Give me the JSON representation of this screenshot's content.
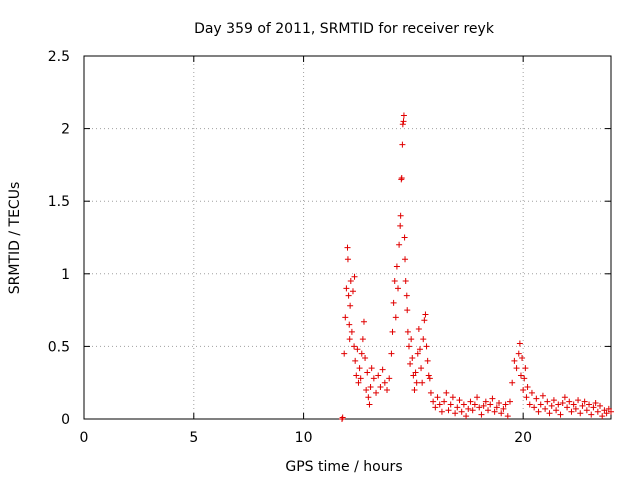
{
  "chart_data": {
    "type": "scatter",
    "title": "Day 359 of 2011, SRMTID for receiver reyk",
    "xlabel": "GPS time / hours",
    "ylabel": "SRMTID / TECUs",
    "xlim": [
      0,
      24
    ],
    "ylim": [
      0,
      2.5
    ],
    "xticks": [
      0,
      5,
      10,
      20
    ],
    "yticks": [
      0,
      0.5,
      1,
      1.5,
      2,
      2.5
    ],
    "grid": true,
    "marker": "plus",
    "color": "#e00000",
    "series": [
      {
        "name": "SRMTID",
        "points": [
          [
            11.75,
            0.0
          ],
          [
            11.78,
            0.01
          ],
          [
            11.85,
            0.45
          ],
          [
            11.9,
            0.7
          ],
          [
            11.95,
            0.9
          ],
          [
            12.0,
            1.18
          ],
          [
            12.02,
            1.1
          ],
          [
            12.05,
            0.85
          ],
          [
            12.08,
            0.65
          ],
          [
            12.1,
            0.55
          ],
          [
            12.12,
            0.78
          ],
          [
            12.15,
            0.95
          ],
          [
            12.2,
            0.6
          ],
          [
            12.25,
            0.88
          ],
          [
            12.3,
            0.5
          ],
          [
            12.32,
            0.98
          ],
          [
            12.35,
            0.4
          ],
          [
            12.4,
            0.3
          ],
          [
            12.45,
            0.48
          ],
          [
            12.5,
            0.25
          ],
          [
            12.55,
            0.35
          ],
          [
            12.6,
            0.28
          ],
          [
            12.65,
            0.45
          ],
          [
            12.7,
            0.55
          ],
          [
            12.75,
            0.67
          ],
          [
            12.8,
            0.42
          ],
          [
            12.85,
            0.2
          ],
          [
            12.9,
            0.32
          ],
          [
            12.95,
            0.15
          ],
          [
            13.0,
            0.1
          ],
          [
            13.05,
            0.22
          ],
          [
            13.1,
            0.35
          ],
          [
            13.2,
            0.28
          ],
          [
            13.3,
            0.18
          ],
          [
            13.4,
            0.3
          ],
          [
            13.5,
            0.22
          ],
          [
            13.6,
            0.34
          ],
          [
            13.7,
            0.25
          ],
          [
            13.8,
            0.2
          ],
          [
            13.9,
            0.28
          ],
          [
            14.0,
            0.45
          ],
          [
            14.05,
            0.6
          ],
          [
            14.1,
            0.8
          ],
          [
            14.15,
            0.95
          ],
          [
            14.2,
            0.7
          ],
          [
            14.25,
            1.05
          ],
          [
            14.3,
            0.9
          ],
          [
            14.35,
            1.2
          ],
          [
            14.4,
            1.33
          ],
          [
            14.42,
            1.4
          ],
          [
            14.45,
            1.65
          ],
          [
            14.47,
            1.66
          ],
          [
            14.5,
            1.89
          ],
          [
            14.52,
            2.03
          ],
          [
            14.55,
            2.05
          ],
          [
            14.57,
            2.09
          ],
          [
            14.6,
            1.25
          ],
          [
            14.62,
            1.1
          ],
          [
            14.65,
            0.95
          ],
          [
            14.7,
            0.85
          ],
          [
            14.72,
            0.75
          ],
          [
            14.75,
            0.6
          ],
          [
            14.8,
            0.5
          ],
          [
            14.85,
            0.38
          ],
          [
            14.9,
            0.55
          ],
          [
            14.95,
            0.42
          ],
          [
            15.0,
            0.3
          ],
          [
            15.05,
            0.2
          ],
          [
            15.1,
            0.32
          ],
          [
            15.15,
            0.25
          ],
          [
            15.2,
            0.45
          ],
          [
            15.25,
            0.62
          ],
          [
            15.3,
            0.48
          ],
          [
            15.35,
            0.35
          ],
          [
            15.4,
            0.25
          ],
          [
            15.45,
            0.55
          ],
          [
            15.5,
            0.68
          ],
          [
            15.55,
            0.72
          ],
          [
            15.6,
            0.5
          ],
          [
            15.65,
            0.4
          ],
          [
            15.7,
            0.3
          ],
          [
            15.75,
            0.28
          ],
          [
            15.8,
            0.18
          ],
          [
            15.9,
            0.12
          ],
          [
            16.0,
            0.08
          ],
          [
            16.1,
            0.15
          ],
          [
            16.2,
            0.1
          ],
          [
            16.3,
            0.05
          ],
          [
            16.4,
            0.12
          ],
          [
            16.5,
            0.18
          ],
          [
            16.6,
            0.06
          ],
          [
            16.7,
            0.1
          ],
          [
            16.8,
            0.15
          ],
          [
            16.9,
            0.04
          ],
          [
            17.0,
            0.08
          ],
          [
            17.1,
            0.13
          ],
          [
            17.2,
            0.05
          ],
          [
            17.3,
            0.1
          ],
          [
            17.4,
            0.02
          ],
          [
            17.5,
            0.07
          ],
          [
            17.6,
            0.12
          ],
          [
            17.7,
            0.06
          ],
          [
            17.8,
            0.1
          ],
          [
            17.9,
            0.15
          ],
          [
            18.0,
            0.08
          ],
          [
            18.1,
            0.03
          ],
          [
            18.2,
            0.09
          ],
          [
            18.3,
            0.12
          ],
          [
            18.4,
            0.06
          ],
          [
            18.5,
            0.1
          ],
          [
            18.6,
            0.14
          ],
          [
            18.7,
            0.05
          ],
          [
            18.8,
            0.08
          ],
          [
            18.9,
            0.11
          ],
          [
            19.0,
            0.04
          ],
          [
            19.1,
            0.07
          ],
          [
            19.2,
            0.1
          ],
          [
            19.3,
            0.02
          ],
          [
            19.4,
            0.12
          ],
          [
            19.5,
            0.25
          ],
          [
            19.6,
            0.4
          ],
          [
            19.7,
            0.35
          ],
          [
            19.8,
            0.45
          ],
          [
            19.85,
            0.52
          ],
          [
            19.9,
            0.3
          ],
          [
            19.95,
            0.42
          ],
          [
            20.0,
            0.2
          ],
          [
            20.05,
            0.28
          ],
          [
            20.1,
            0.35
          ],
          [
            20.15,
            0.15
          ],
          [
            20.2,
            0.22
          ],
          [
            20.3,
            0.1
          ],
          [
            20.4,
            0.18
          ],
          [
            20.5,
            0.08
          ],
          [
            20.6,
            0.14
          ],
          [
            20.7,
            0.05
          ],
          [
            20.8,
            0.1
          ],
          [
            20.9,
            0.16
          ],
          [
            21.0,
            0.07
          ],
          [
            21.1,
            0.12
          ],
          [
            21.2,
            0.04
          ],
          [
            21.3,
            0.09
          ],
          [
            21.4,
            0.13
          ],
          [
            21.5,
            0.06
          ],
          [
            21.6,
            0.1
          ],
          [
            21.7,
            0.03
          ],
          [
            21.8,
            0.11
          ],
          [
            21.9,
            0.15
          ],
          [
            22.0,
            0.08
          ],
          [
            22.1,
            0.12
          ],
          [
            22.2,
            0.05
          ],
          [
            22.3,
            0.1
          ],
          [
            22.4,
            0.07
          ],
          [
            22.5,
            0.13
          ],
          [
            22.6,
            0.04
          ],
          [
            22.7,
            0.09
          ],
          [
            22.8,
            0.12
          ],
          [
            22.9,
            0.06
          ],
          [
            23.0,
            0.1
          ],
          [
            23.1,
            0.03
          ],
          [
            23.2,
            0.08
          ],
          [
            23.3,
            0.11
          ],
          [
            23.4,
            0.05
          ],
          [
            23.5,
            0.09
          ],
          [
            23.6,
            0.02
          ],
          [
            23.7,
            0.06
          ],
          [
            23.8,
            0.04
          ],
          [
            23.9,
            0.07
          ],
          [
            24.0,
            0.05
          ]
        ]
      }
    ]
  }
}
